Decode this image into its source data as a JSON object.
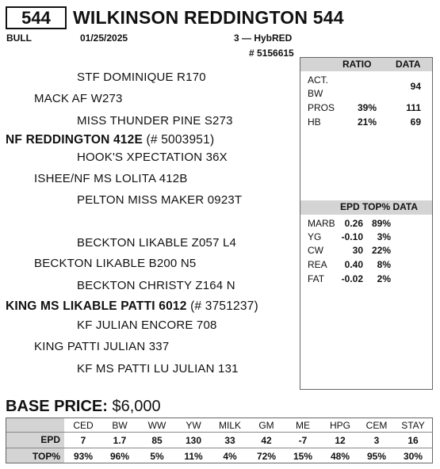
{
  "header": {
    "lot": "544",
    "name": "WILKINSON REDDINGTON 544",
    "sex": "BULL",
    "birth_date": "01/25/2025",
    "tattoo": "3 — HybRED",
    "registration": "# 5156615"
  },
  "pedigree": {
    "sss": "STF DOMINIQUE R170",
    "ss": "MACK AF W273",
    "ssd": "MISS THUNDER PINE S273",
    "sire_name": "NF REDDINGTON 412E",
    "sire_reg": "(# 5003951)",
    "sds": "HOOK'S XPECTATION 36X",
    "sd": "ISHEE/NF MS LOLITA 412B",
    "sdd": "PELTON MISS MAKER 0923T",
    "dss": "BECKTON LIKABLE Z057 L4",
    "ds": "BECKTON LIKABLE B200 N5",
    "dsd": "BECKTON CHRISTY Z164 N",
    "dam_name": "KING MS LIKABLE PATTI 6012",
    "dam_reg": "(# 3751237)",
    "dds": "KF JULIAN ENCORE 708",
    "dd": "KING PATTI JULIAN 337",
    "ddd": "KF MS PATTI LU JULIAN 131"
  },
  "ratio_panel": {
    "col_ratio": "RATIO",
    "col_data": "DATA",
    "act_bw_label_1": "ACT.",
    "act_bw_label_2": "BW",
    "act_bw_data": "94",
    "pros_label": "PROS",
    "pros_ratio": "39%",
    "pros_data": "111",
    "hb_label": "HB",
    "hb_ratio": "21%",
    "hb_data": "69"
  },
  "carcass_panel": {
    "header": "EPD TOP% DATA",
    "rows": [
      {
        "label": "MARB",
        "epd": "0.26",
        "top": "89%"
      },
      {
        "label": "YG",
        "epd": "-0.10",
        "top": "3%"
      },
      {
        "label": "CW",
        "epd": "30",
        "top": "22%"
      },
      {
        "label": "REA",
        "epd": "0.40",
        "top": "8%"
      },
      {
        "label": "FAT",
        "epd": "-0.02",
        "top": "2%"
      }
    ]
  },
  "base_price": {
    "label": "BASE PRICE:",
    "value": "$6,000"
  },
  "epd_table": {
    "headers": [
      "CED",
      "BW",
      "WW",
      "YW",
      "MILK",
      "GM",
      "ME",
      "HPG",
      "CEM",
      "STAY"
    ],
    "epd_label": "EPD",
    "epd": [
      "7",
      "1.7",
      "85",
      "130",
      "33",
      "42",
      "-7",
      "12",
      "3",
      "16"
    ],
    "top_label": "TOP%",
    "top": [
      "93%",
      "96%",
      "5%",
      "11%",
      "4%",
      "72%",
      "15%",
      "48%",
      "95%",
      "30%"
    ]
  }
}
